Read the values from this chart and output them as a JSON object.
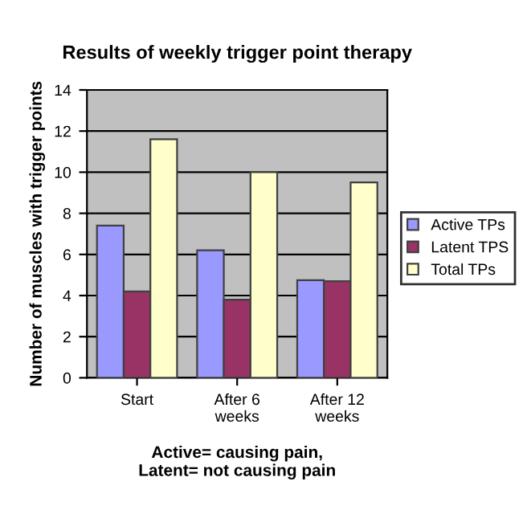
{
  "chart_data": {
    "type": "bar",
    "title": "Results of weekly trigger point therapy",
    "ylabel": "Number of muscles with trigger points",
    "categories": [
      "Start",
      "After 6\nweeks",
      "After 12\nweeks"
    ],
    "series": [
      {
        "name": "Active TPs",
        "color": "#9999ff",
        "values": [
          7.4,
          6.2,
          4.75
        ]
      },
      {
        "name": "Latent TPS",
        "color": "#993366",
        "values": [
          4.2,
          3.8,
          4.7
        ]
      },
      {
        "name": "Total TPs",
        "color": "#ffffcc",
        "values": [
          11.6,
          10.0,
          9.5
        ]
      }
    ],
    "ylim": [
      0,
      14
    ],
    "yticks": [
      0,
      2,
      4,
      6,
      8,
      10,
      12,
      14
    ],
    "grid": "y",
    "legend": "right",
    "annotations": [
      "Active= causing pain,\nLatent= not causing pain"
    ]
  }
}
